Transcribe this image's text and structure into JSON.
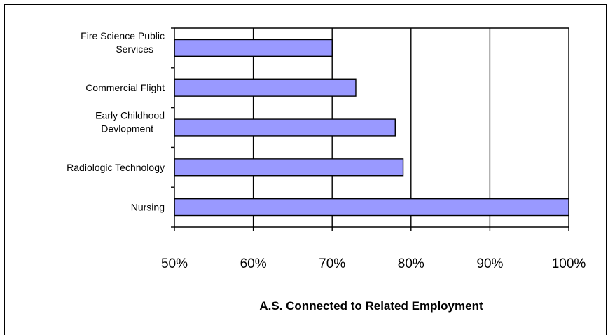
{
  "chart_data": {
    "type": "bar",
    "orientation": "horizontal",
    "categories": [
      [
        "Fire Science Public",
        "Services"
      ],
      [
        "Commercial Flight"
      ],
      [
        "Early Childhood",
        "Devlopment"
      ],
      [
        "Radiologic Technology"
      ],
      [
        "Nursing"
      ]
    ],
    "values": [
      70,
      73,
      78,
      79,
      100
    ],
    "xlim": [
      50,
      100
    ],
    "xticks": [
      {
        "value": 50,
        "label": "50%"
      },
      {
        "value": 60,
        "label": "60%"
      },
      {
        "value": 70,
        "label": "70%"
      },
      {
        "value": 80,
        "label": "80%"
      },
      {
        "value": 90,
        "label": "90%"
      },
      {
        "value": 100,
        "label": "100%"
      }
    ],
    "xlabel": "A.S. Connected to Related Employment",
    "grid": "vertical",
    "colors": {
      "bar_fill": "#9999ff",
      "bar_stroke": "#000000",
      "grid": "#000000"
    }
  }
}
